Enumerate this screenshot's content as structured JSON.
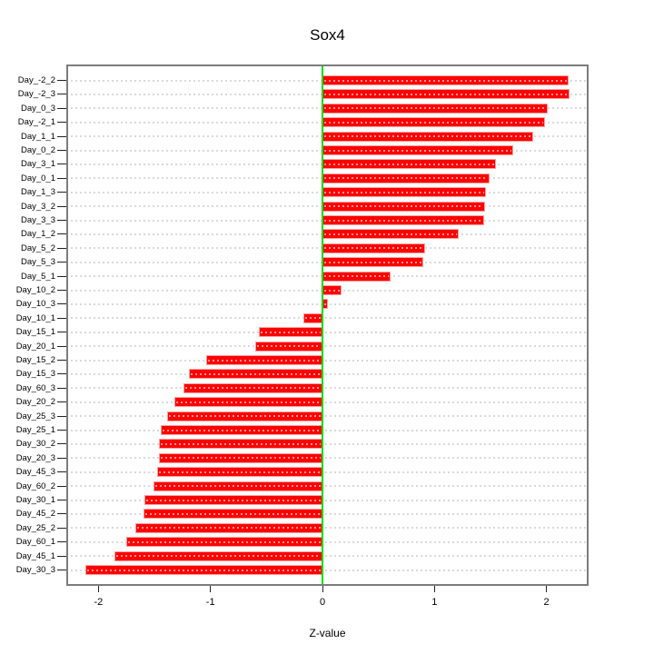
{
  "chart_data": {
    "type": "bar",
    "orientation": "horizontal",
    "title": "Sox4",
    "xlabel": "Z-value",
    "ylabel": "",
    "legend": "none",
    "grid": "dotted-horizontal",
    "categories": [
      "Day_-2_2",
      "Day_-2_3",
      "Day_0_3",
      "Day_-2_1",
      "Day_1_1",
      "Day_0_2",
      "Day_3_1",
      "Day_0_1",
      "Day_1_3",
      "Day_3_2",
      "Day_3_3",
      "Day_1_2",
      "Day_5_2",
      "Day_5_3",
      "Day_5_1",
      "Day_10_2",
      "Day_10_3",
      "Day_10_1",
      "Day_15_1",
      "Day_20_1",
      "Day_15_2",
      "Day_15_3",
      "Day_60_3",
      "Day_20_2",
      "Day_25_3",
      "Day_25_1",
      "Day_30_2",
      "Day_20_3",
      "Day_45_3",
      "Day_60_2",
      "Day_30_1",
      "Day_45_2",
      "Day_25_2",
      "Day_60_1",
      "Day_45_1",
      "Day_30_3"
    ],
    "values": [
      2.2,
      2.21,
      2.01,
      1.99,
      1.88,
      1.7,
      1.55,
      1.49,
      1.46,
      1.45,
      1.44,
      1.22,
      0.92,
      0.9,
      0.61,
      0.17,
      0.05,
      -0.17,
      -0.57,
      -0.6,
      -1.04,
      -1.19,
      -1.24,
      -1.32,
      -1.39,
      -1.44,
      -1.46,
      -1.46,
      -1.48,
      -1.51,
      -1.59,
      -1.6,
      -1.67,
      -1.75,
      -1.86,
      -2.12
    ],
    "xticks": [
      -2,
      -1,
      0,
      1,
      2
    ],
    "xlim": [
      -2.29,
      2.38
    ],
    "zero_reference_line": 0,
    "colors": {
      "bar_fill": "#ff0000",
      "bar_border": "#ff9f9f",
      "zero_line": "#00dd00",
      "grid_line": "#d9d9d9",
      "box_border": "#7c7c7c",
      "text": "#000000",
      "background": "#ffffff"
    }
  }
}
